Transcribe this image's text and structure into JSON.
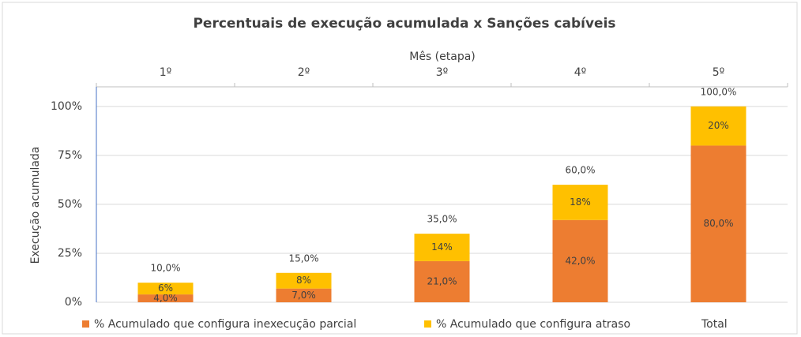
{
  "chart_data": {
    "type": "bar",
    "stacked": true,
    "title": "Percentuais de execução acumulada x Sanções cabíveis",
    "x_label": "Mês (etapa)",
    "x_axis_position": "top",
    "y_label": "Execução acumulada",
    "categories": [
      "1º",
      "2º",
      "3º",
      "4º",
      "5º"
    ],
    "series": [
      {
        "name": "% Acumulado que configura inexecução parcial",
        "color": "#ED7D31",
        "values": [
          4,
          7,
          21,
          42,
          80
        ],
        "value_labels": [
          "4,0%",
          "7,0%",
          "21,0%",
          "42,0%",
          "80,0%"
        ]
      },
      {
        "name": "% Acumulado que configura atraso",
        "color": "#FFC000",
        "values": [
          6,
          8,
          14,
          18,
          20
        ],
        "value_labels": [
          "6%",
          "8%",
          "14%",
          "18%",
          "20%"
        ]
      },
      {
        "name": "Total",
        "values": [
          10,
          15,
          35,
          60,
          100
        ],
        "value_labels": [
          "10,0%",
          "15,0%",
          "35,0%",
          "60,0%",
          "100,0%"
        ]
      }
    ],
    "ylim": [
      0,
      110
    ],
    "yticks": [
      {
        "value": 0,
        "label": "0%"
      },
      {
        "value": 25,
        "label": "25%"
      },
      {
        "value": 50,
        "label": "50%"
      },
      {
        "value": 75,
        "label": "75%"
      },
      {
        "value": 100,
        "label": "100%"
      }
    ],
    "grid": true,
    "legend": "bottom"
  }
}
